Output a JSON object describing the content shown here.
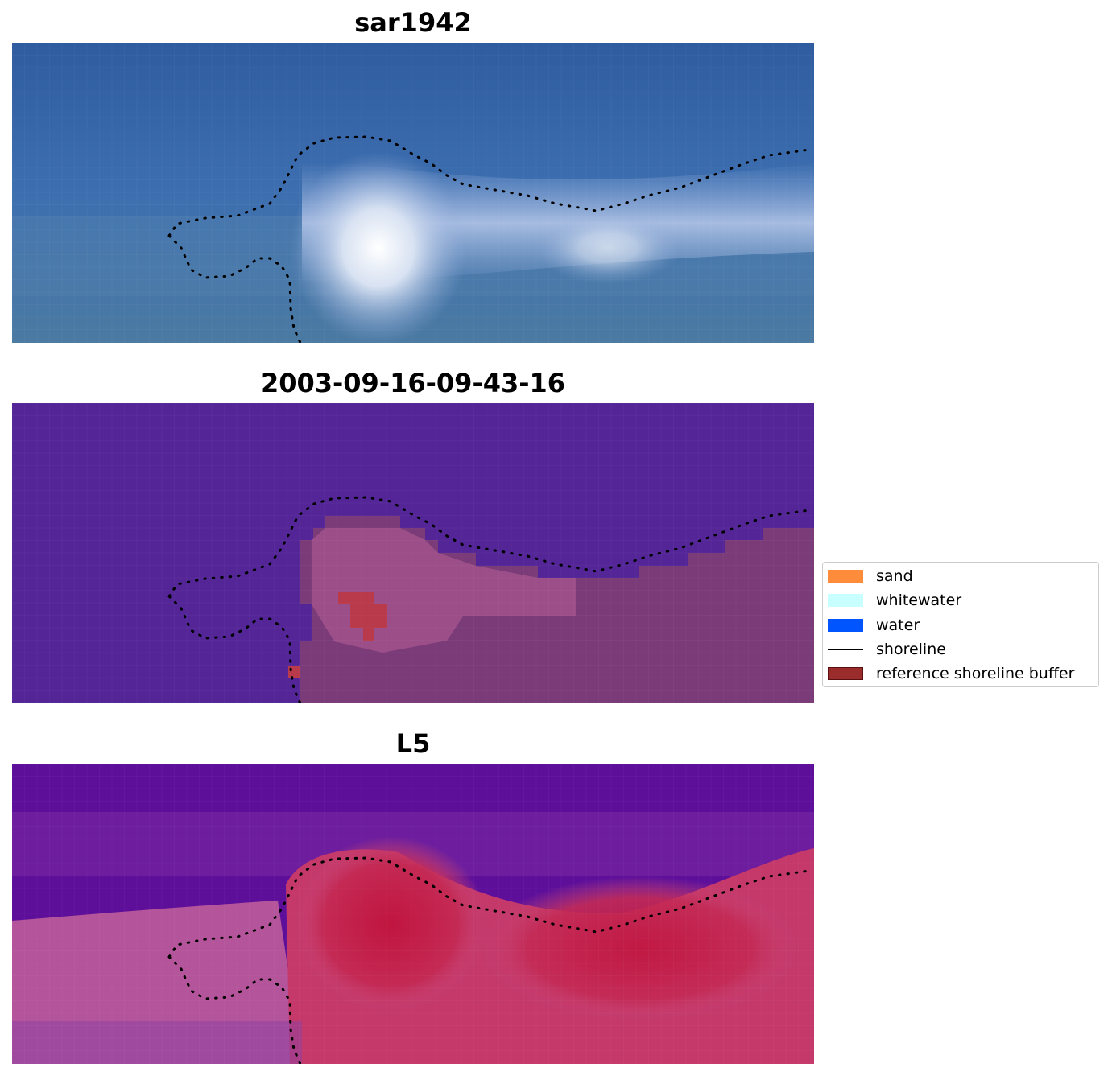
{
  "panels": [
    {
      "title": "sar1942",
      "kind": "rgb"
    },
    {
      "title": "2003-09-16-09-43-16",
      "kind": "classified"
    },
    {
      "title": "L5",
      "kind": "index"
    }
  ],
  "legend": {
    "items": [
      {
        "label": "sand",
        "color": "#ff8c3a",
        "type": "patch"
      },
      {
        "label": "whitewater",
        "color": "#c8ffff",
        "type": "patch"
      },
      {
        "label": "water",
        "color": "#0055ff",
        "type": "patch"
      },
      {
        "label": "shoreline",
        "color": "#000000",
        "type": "line"
      },
      {
        "label": "reference shoreline buffer",
        "color": "#9b2c2c",
        "type": "patch"
      }
    ]
  },
  "colors": {
    "rgb_water": "#2f5c9f",
    "rgb_bright": "#ffffff",
    "class_water": "#532597",
    "class_land": "#7a3b78",
    "class_buffer": "#b93a4a",
    "index_low": "#5e0f9a",
    "index_high": "#c0153f"
  }
}
